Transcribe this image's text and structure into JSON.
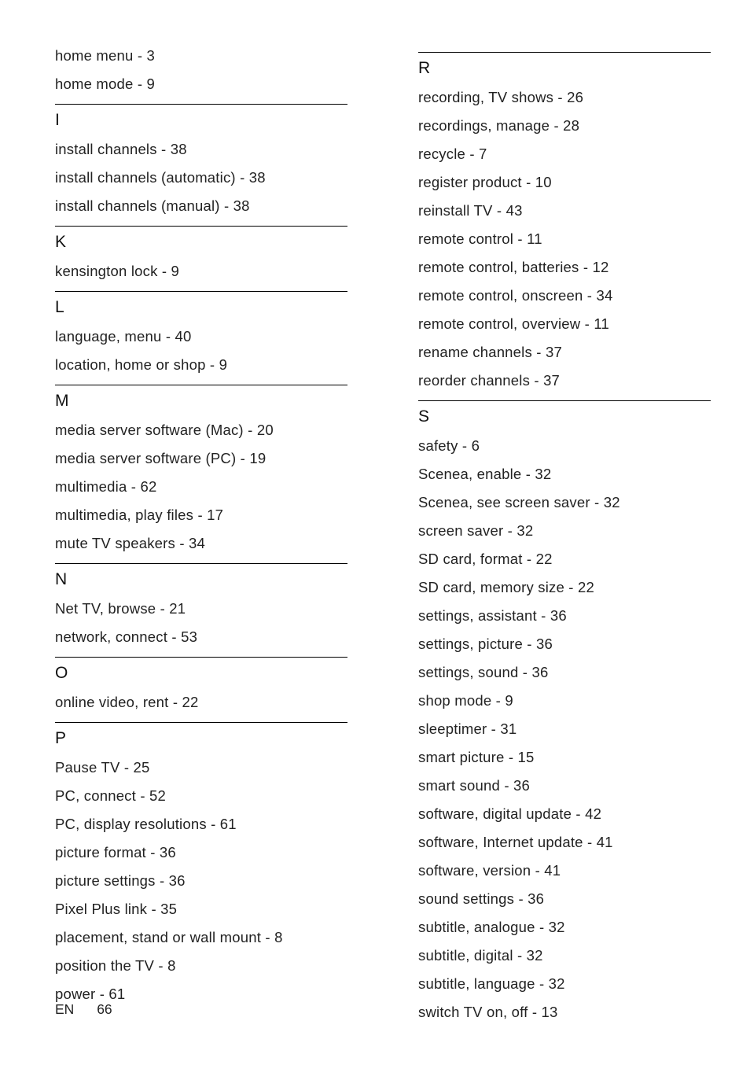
{
  "left": {
    "pre": [
      "home menu - 3",
      "home mode - 9"
    ],
    "sections": [
      {
        "letter": "I",
        "entries": [
          "install channels - 38",
          "install channels (automatic) - 38",
          "install channels (manual) - 38"
        ]
      },
      {
        "letter": "K",
        "entries": [
          "kensington lock - 9"
        ]
      },
      {
        "letter": "L",
        "entries": [
          "language, menu - 40",
          "location, home or shop - 9"
        ]
      },
      {
        "letter": "M",
        "entries": [
          "media server software (Mac) - 20",
          "media server software (PC) - 19",
          "multimedia - 62",
          "multimedia, play files - 17",
          "mute TV speakers - 34"
        ]
      },
      {
        "letter": "N",
        "entries": [
          "Net TV, browse - 21",
          "network, connect - 53"
        ]
      },
      {
        "letter": "O",
        "entries": [
          "online video, rent - 22"
        ]
      },
      {
        "letter": "P",
        "entries": [
          "Pause TV - 25",
          "PC, connect - 52",
          "PC, display resolutions - 61",
          "picture format - 36",
          "picture settings - 36",
          "Pixel Plus link - 35",
          "placement, stand or wall mount - 8",
          "position the TV - 8",
          "power - 61"
        ]
      }
    ]
  },
  "right": {
    "sections": [
      {
        "letter": "R",
        "entries": [
          "recording, TV shows - 26",
          "recordings, manage - 28",
          "recycle - 7",
          "register product - 10",
          "reinstall TV - 43",
          "remote control - 11",
          "remote control, batteries - 12",
          "remote control, onscreen - 34",
          "remote control, overview - 11",
          "rename channels - 37",
          "reorder channels - 37"
        ]
      },
      {
        "letter": "S",
        "entries": [
          "safety - 6",
          "Scenea, enable - 32",
          "Scenea, see screen saver - 32",
          "screen saver - 32",
          "SD card, format - 22",
          "SD card, memory size - 22",
          "settings, assistant - 36",
          "settings, picture - 36",
          "settings, sound - 36",
          "shop mode - 9",
          "sleeptimer - 31",
          "smart picture - 15",
          "smart sound - 36",
          "software, digital update - 42",
          "software, Internet update - 41",
          "software, version - 41",
          "sound settings - 36",
          "subtitle, analogue - 32",
          "subtitle, digital - 32",
          "subtitle, language - 32",
          "switch TV on, off - 13"
        ]
      }
    ]
  },
  "footer": {
    "lang": "EN",
    "page": "66"
  }
}
